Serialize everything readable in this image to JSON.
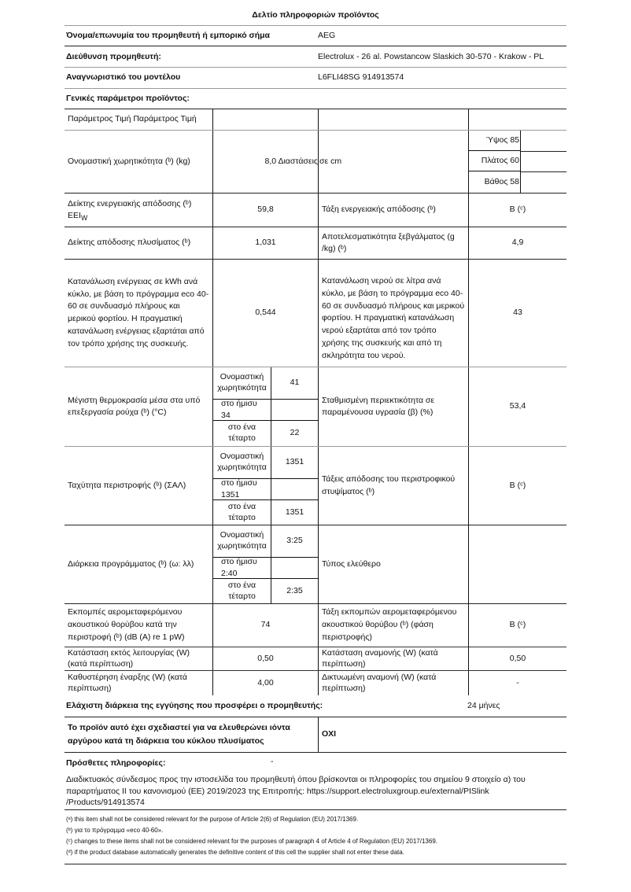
{
  "title": "Δελτίο πληροφοριών προϊόντος",
  "supplier": {
    "name_label": "Όνομα/επωνυμία του προμηθευτή ή εμπορικό σήμα",
    "name_value": "AEG",
    "address_label": "Διεύθυνση προμηθευτή:",
    "address_value": "Electrolux - 26 al. Powstancow Slaskich 30-570 - Krakow - PL",
    "model_label": "Αναγνωριστικό του μοντέλου",
    "model_value": "L6FLI48SG 914913574"
  },
  "general_label": "Γενικές παράμετροι προϊόντος:",
  "table": {
    "header": "Παράμετρος Τιμή Παράμετρος Τιμή",
    "capacity_label": "Ονομαστική χωρητικότητα (ᵇ) (kg)",
    "capacity_value": "8,0 Διαστάσεις",
    "dimensions_unit": "σε cm",
    "height": "Ύψος 85",
    "width": "Πλάτος 60",
    "depth": "Βάθος 58",
    "eei_label": "Δείκτης ενεργειακής απόδοσης (ᵇ)",
    "eei_label2": "EEI",
    "eei_sub": "W",
    "eei_value": "59,8",
    "energy_class_label": "Τάξη ενεργειακής απόδοσης (ᵇ)",
    "energy_class_value": "B (ᶜ)",
    "wash_index_label": "Δείκτης απόδοσης πλυσίματος (ᵇ)",
    "wash_index_value": "1,031",
    "rinse_label": "Αποτελεσματικότητα ξεβγάλματος (g /kg) (ᵇ)",
    "rinse_value": "4,9",
    "energy_cons_label": "Κατανάλωση ενέργειας σε kWh ανά κύκλο, με βάση το πρόγραμμα eco 40-60 σε συνδυασμό πλήρους και μερικού φορτίου. Η πραγματική κατανάλωση ενέργειας εξαρτάται από τον τρόπο χρήσης της συσκευής.",
    "energy_cons_value": "0,544",
    "water_cons_label": "Κατανάλωση νερού σε λίτρα ανά κύκλο, με βάση το πρόγραμμα eco 40-60 σε συνδυασμό πλήρους και μερικού φορτίου. Η πραγματική κατανάλωση νερού εξαρτάται από τον τρόπο χρήσης της συσκευής και από τη σκληρότητα του νερού.",
    "water_cons_value": "43",
    "temp_label": "Μέγιστη θερμοκρασία μέσα στα υπό επεξεργασία ρούχα (ᵇ) (°C)",
    "temp": [
      {
        "label": "Ονομαστική χωρητικότητα",
        "value": "41"
      },
      {
        "label": "στο ήμισυ 34",
        "value": ""
      },
      {
        "label": "στο ένα τέταρτο",
        "value": "22"
      }
    ],
    "moisture_label": "Σταθμισμένη περιεκτικότητα σε παραμένουσα υγρασία (β) (%)",
    "moisture_value": "53,4",
    "spin_label": "Ταχύτητα περιστροφής (ᵇ) (ΣΑΛ)",
    "spin": [
      {
        "label": "Ονομαστική χωρητικότητα",
        "value": "1351"
      },
      {
        "label": "στο ήμισυ 1351",
        "value": ""
      },
      {
        "label": "στο ένα τέταρτο",
        "value": "1351"
      }
    ],
    "spin_class_label": "Τάξεις απόδοσης του περιστροφικού στυψίματος (ᵇ)",
    "spin_class_value": "B (ᶜ)",
    "duration_label": "Διάρκεια προγράμματος (ᵇ) (ω: λλ)",
    "duration": [
      {
        "label": "Ονομαστική χωρητικότητα",
        "value": "3:25"
      },
      {
        "label": "στο ήμισυ 2:40",
        "value": ""
      },
      {
        "label": "στο ένα τέταρτο",
        "value": "2:35"
      }
    ],
    "type_label": "Τύπος ελεύθερο",
    "noise_label": "Εκπομπές αερομεταφερόμενου ακουστικού θορύβου κατά την περιστροφή (ᵇ) (dB (A) re 1 pW)",
    "noise_value": "74",
    "noise_class_label": "Τάξη εκπομπών αερομεταφερόμενου ακουστικού θορύβου (ᵇ) (φάση περιστροφής)",
    "noise_class_value": "B (ᶜ)",
    "off_label": "Κατάσταση εκτός λειτουργίας (W) (κατά περίπτωση)",
    "off_value": "0,50",
    "standby_label": "Κατάσταση αναμονής (W) (κατά περίπτωση)",
    "standby_value": "0,50",
    "delay_label": "Καθυστέρηση έναρξης (W) (κατά περίπτωση)",
    "delay_value": "4,00",
    "network_label": "Δικτυωμένη αναμονή (W) (κατά περίπτωση)",
    "network_value": "-"
  },
  "warranty_label": "Ελάχιστη διάρκεια της εγγύησης που προσφέρει ο προμηθευτής:",
  "warranty_value": "24 μήνες",
  "silver_label": "Το προϊόν αυτό έχει σχεδιαστεί για να ελευθερώνει ιόντα αργύρου κατά τη διάρκεια του κύκλου πλυσίματος",
  "silver_value": "ΟΧΙ",
  "additional_label": "Πρόσθετες πληροφορίες:",
  "additional_value": "-",
  "link_text": "Διαδικτυακός σύνδεσμος προς την ιστοσελίδα του προμηθευτή όπου βρίσκονται οι πληροφορίες του σημείου 9 στοιχείο α) του παραρτήματος II του κανονισμού (ΕΕ) 2019/2023 της Επιτροπής: https://support.electroluxgroup.eu/external/PISlink /Products/914913574",
  "footnotes": [
    "(ᵃ) this item shall not be considered relevant for the purpose of Article 2(6) of Regulation (EU) 2017/1369.",
    "(ᵇ) για το πρόγραμμα «eco 40-60».",
    "(ᶜ) changes to these items shall not be considered relevant for the purposes of paragraph 4 of Article 4 of Regulation (EU) 2017/1369.",
    "(ᵈ) if the product database automatically generates the definitive content of this cell the supplier shall not enter these data."
  ]
}
